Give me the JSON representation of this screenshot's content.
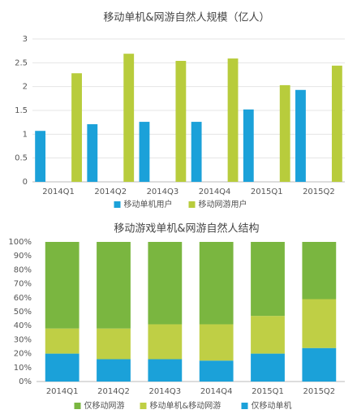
{
  "chart_data": [
    {
      "type": "bar",
      "title": "移动单机&网游自然人规模（亿人）",
      "categories": [
        "2014Q1",
        "2014Q2",
        "2014Q3",
        "2014Q4",
        "2015Q1",
        "2015Q2"
      ],
      "series": [
        {
          "name": "移动单机用户",
          "color": "#1ba1d9",
          "values": [
            1.07,
            1.21,
            1.26,
            1.26,
            1.52,
            1.93
          ]
        },
        {
          "name": "移动网游用户",
          "color": "#b8cc3c",
          "values": [
            2.28,
            2.69,
            2.54,
            2.59,
            2.03,
            2.44
          ]
        }
      ],
      "ylim": [
        0,
        3
      ],
      "yticks": [
        0,
        0.5,
        1,
        1.5,
        2,
        2.5,
        3
      ],
      "grid": true,
      "stacked": false
    },
    {
      "type": "bar",
      "title": "移动游戏单机&网游自然人结构",
      "categories": [
        "2014Q1",
        "2014Q2",
        "2014Q3",
        "2014Q4",
        "2015Q1",
        "2015Q2"
      ],
      "series": [
        {
          "name": "仅移动网游",
          "color": "#7ab640",
          "values": [
            62,
            62,
            59,
            59,
            53,
            41
          ]
        },
        {
          "name": "移动单机&移动网游",
          "color": "#bfcf45",
          "values": [
            18,
            22,
            25,
            26,
            27,
            35
          ]
        },
        {
          "name": "仅移动单机",
          "color": "#1ba1d9",
          "values": [
            20,
            16,
            16,
            15,
            20,
            24
          ]
        }
      ],
      "ylim": [
        0,
        100
      ],
      "yticks": [
        {
          "value": 0,
          "label": "0%"
        },
        {
          "value": 10,
          "label": "10%"
        },
        {
          "value": 20,
          "label": "20%"
        },
        {
          "value": 30,
          "label": "30%"
        },
        {
          "value": 40,
          "label": "40%"
        },
        {
          "value": 50,
          "label": "50%"
        },
        {
          "value": 60,
          "label": "60%"
        },
        {
          "value": 70,
          "label": "70%"
        },
        {
          "value": 80,
          "label": "80%"
        },
        {
          "value": 90,
          "label": "90%"
        },
        {
          "value": 100,
          "label": "100%"
        }
      ],
      "grid": false,
      "stacked": true
    }
  ]
}
